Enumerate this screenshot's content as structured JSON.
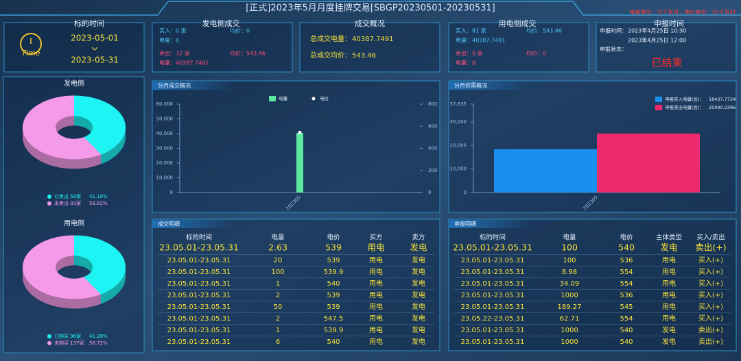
{
  "header": {
    "title": "[正式]2023年5月月度挂牌交易[SBGP20230501-20230531]",
    "note": "电量单位：万千瓦时，电价单位：元/千瓦时"
  },
  "time_panel": {
    "title": "标的时间",
    "icon": "Time",
    "start": "2023-05-01",
    "end": "2023-05-31"
  },
  "gen_trade": {
    "title": "发电侧成交",
    "items": [
      "买入：0 家",
      "均价：0",
      "电量：0",
      "卖出：32 家",
      "均价：543.46",
      "电量：40387.7491"
    ]
  },
  "summary": {
    "title": "成交概况",
    "items": [
      [
        "总成交电量：",
        "40387.7491"
      ],
      [
        "总成交均价：",
        "543.46"
      ]
    ]
  },
  "use_trade": {
    "title": "用电侧成交",
    "items": [
      "买入：81 家",
      "均价：543.46",
      "电量：40387.7491",
      "卖出：0 家",
      "均价：0",
      "电量：0"
    ]
  },
  "declare": {
    "title": "申报时间",
    "time_label": "申报时间：",
    "start": "2023年4月25日 10:30",
    "end": "2023年4月25日 12:00",
    "status_label": "申报状态：",
    "status": "已结束"
  },
  "chart_data": [
    {
      "type": "pie",
      "title": "发电侧",
      "categories": [
        "已卖出 58家",
        "未卖出 83家"
      ],
      "values": [
        41.18,
        58.82
      ],
      "value_labels": [
        "41.18%",
        "58.82%"
      ],
      "colors": [
        "#1ff4f4",
        "#f49ae8"
      ]
    },
    {
      "type": "pie",
      "title": "用电侧",
      "categories": [
        "已购买 96家",
        "未购买 137家"
      ],
      "values": [
        41.28,
        58.72
      ],
      "value_labels": [
        "41.28%",
        "58.72%"
      ],
      "colors": [
        "#1ff4f4",
        "#f49ae8"
      ]
    },
    {
      "type": "bar",
      "title": "分月成交概况",
      "categories": [
        "202305"
      ],
      "series": [
        {
          "name": "电量",
          "color": "#5ce8a0",
          "values": [
            40387.7491
          ]
        },
        {
          "name": "电价",
          "color": "#ffffff",
          "type": "point",
          "axis": "y2",
          "values": [
            543.46
          ]
        }
      ],
      "ylim": [
        0,
        60000
      ],
      "yticks": [
        0,
        {
          "value": 10000,
          "label": "10,000"
        },
        {
          "value": 20000,
          "label": "20,000"
        },
        {
          "value": 30000,
          "label": "30,000"
        },
        {
          "value": 40000,
          "label": "40,000"
        },
        {
          "value": 50000,
          "label": "50,000"
        },
        {
          "value": 60000,
          "label": "60,000"
        }
      ],
      "y2lim": [
        0,
        800
      ],
      "y2ticks": [
        0,
        200,
        400,
        600,
        800
      ],
      "legend": "top"
    },
    {
      "type": "bar",
      "title": "分月供需概况",
      "categories": [
        "202305"
      ],
      "series": [
        {
          "name": "申报买入电量(总)：",
          "color": "#1a8ff0",
          "values": [
            18437.7724
          ]
        },
        {
          "name": "申报卖出电量(总)：",
          "color": "#ee2a6e",
          "values": [
            25090.2396
          ]
        }
      ],
      "ylim": [
        0,
        37635
      ],
      "yticks": [
        0,
        {
          "value": 10000,
          "label": "10,000"
        },
        {
          "value": 20000,
          "label": "20,000"
        },
        {
          "value": 30000,
          "label": "30,000"
        },
        {
          "value": 37635,
          "label": "37,635"
        }
      ],
      "legend": "upper right",
      "legend_values": true
    }
  ],
  "trade_detail": {
    "title": "成交明细",
    "columns": [
      "标的时间",
      "电量",
      "电价",
      "买方",
      "卖方"
    ],
    "rows": [
      [
        "23.05.01-23.05.31",
        "2.63",
        "539",
        "用电",
        "发电"
      ],
      [
        "23.05.01-23.05.31",
        "20",
        "539",
        "用电",
        "发电"
      ],
      [
        "23.05.01-23.05.31",
        "100",
        "539.9",
        "用电",
        "发电"
      ],
      [
        "23.05.01-23.05.31",
        "1",
        "540",
        "用电",
        "发电"
      ],
      [
        "23.05.01-23.05.31",
        "2",
        "539",
        "用电",
        "发电"
      ],
      [
        "23.05.01-23.05.31",
        "50",
        "539",
        "用电",
        "发电"
      ],
      [
        "23.05.01-23.05.31",
        "2",
        "547.5",
        "用电",
        "发电"
      ],
      [
        "23.05.01-23.05.31",
        "1",
        "539.9",
        "用电",
        "发电"
      ],
      [
        "23.05.01-23.05.31",
        "6",
        "540",
        "用电",
        "发电"
      ]
    ]
  },
  "declare_detail": {
    "title": "申报明细",
    "columns": [
      "标的时间",
      "电量",
      "电价",
      "主体类型",
      "买入/卖出"
    ],
    "rows": [
      [
        "23.05.01-23.05.31",
        "100",
        "540",
        "发电",
        "卖出(+)"
      ],
      [
        "23.05.01-23.05.31",
        "100",
        "536",
        "用电",
        "买入(+)"
      ],
      [
        "23.05.01-23.05.31",
        "8.98",
        "554",
        "用电",
        "买入(+)"
      ],
      [
        "23.05.01-23.05.31",
        "34.09",
        "554",
        "用电",
        "买入(+)"
      ],
      [
        "23.05.01-23.05.31",
        "1000",
        "536",
        "用电",
        "买入(+)"
      ],
      [
        "23.05.01-23.05.31",
        "189.27",
        "545",
        "用电",
        "买入(+)"
      ],
      [
        "23.05.22-23.05.31",
        "62.71",
        "554",
        "用电",
        "买入(+)"
      ],
      [
        "23.05.01-23.05.31",
        "1000",
        "540",
        "发电",
        "卖出(+)"
      ],
      [
        "23.05.01-23.05.31",
        "1000",
        "540",
        "发电",
        "卖出(+)"
      ]
    ]
  }
}
